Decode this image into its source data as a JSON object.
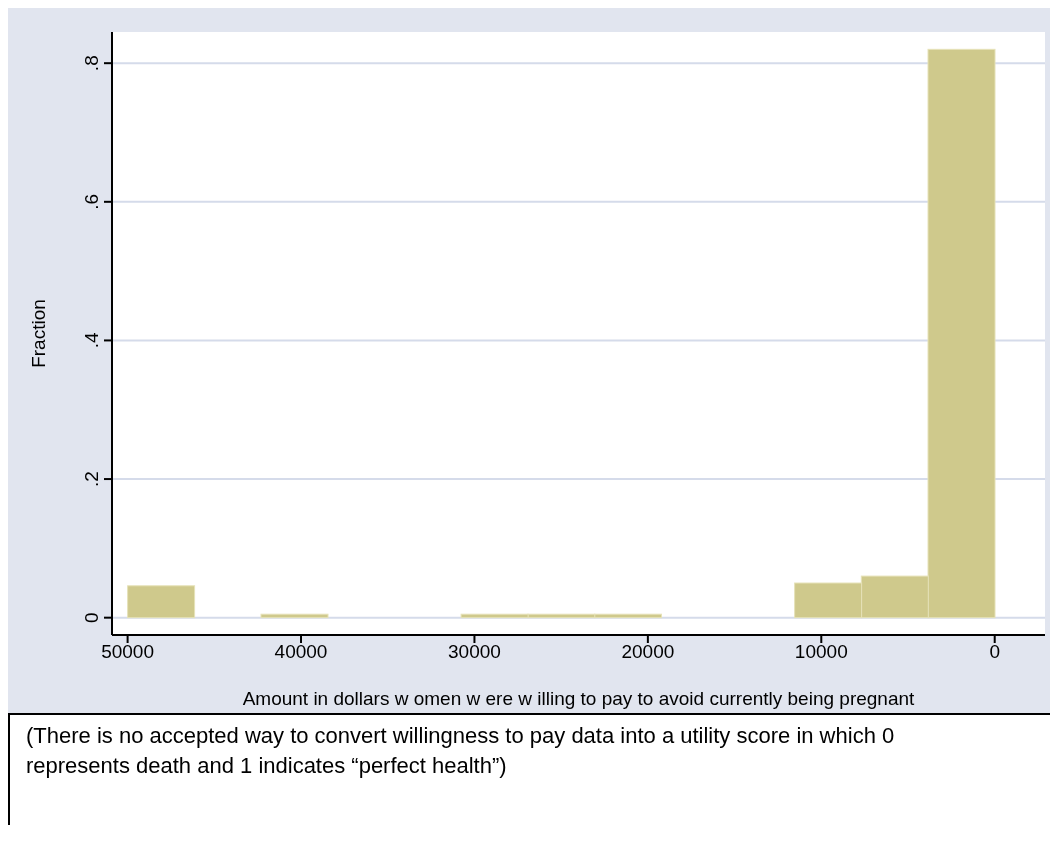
{
  "chart_data": {
    "type": "histogram",
    "xlabel": "Amount in dollars w omen w ere w illing to pay to avoid currently being pregnant",
    "ylabel": "Fraction",
    "bins": [
      0,
      3846.15,
      7692.31,
      11538.46,
      15384.62,
      19230.77,
      23076.92,
      26923.08,
      30769.23,
      34615.38,
      38461.54,
      42307.69,
      46153.85,
      50000
    ],
    "values": [
      0.82,
      0.06,
      0.05,
      0,
      0,
      0.005,
      0.005,
      0.005,
      0,
      0,
      0.005,
      0,
      0.046
    ],
    "color": "#cfc98c",
    "xlim": [
      50900,
      -2900
    ],
    "xticks": [
      50000,
      40000,
      30000,
      20000,
      10000,
      0
    ],
    "ylim": [
      -0.025,
      0.845
    ],
    "yticks": [
      {
        "value": 0,
        "label": "0"
      },
      {
        "value": 0.2,
        "label": ".2"
      },
      {
        "value": 0.4,
        "label": ".4"
      },
      {
        "value": 0.6,
        "label": ".6"
      },
      {
        "value": 0.8,
        "label": ".8"
      }
    ],
    "grid": "y",
    "annotations": [
      "(There is no accepted way to convert willingness to pay data into a utility score in which 0 represents death and 1 indicates “perfect health”)"
    ]
  }
}
